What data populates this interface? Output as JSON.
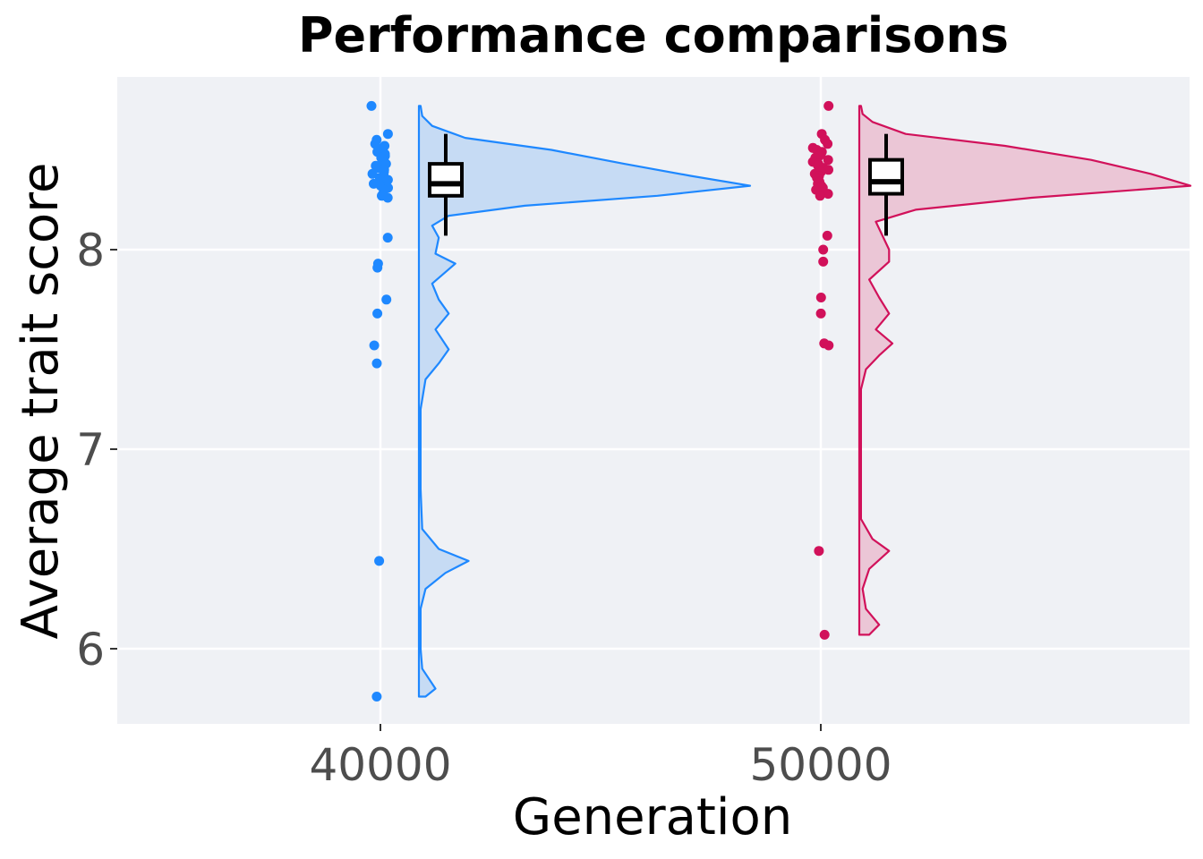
{
  "chart_data": {
    "type": "raincloud",
    "title": "Performance comparisons",
    "xlabel": "Generation",
    "ylabel": "Average trait score",
    "x_categories": [
      "40000",
      "50000"
    ],
    "y_ticks": [
      "6",
      "7",
      "8"
    ],
    "ylim": [
      5.6,
      8.85
    ],
    "grid": true,
    "panel_background": "#eff1f5",
    "groups": [
      {
        "x": 40000,
        "x_label": "40000",
        "color": "#1e88ff",
        "fill": "#c6dbf4",
        "points": [
          8.72,
          8.58,
          8.55,
          8.53,
          8.52,
          8.5,
          8.49,
          8.48,
          8.47,
          8.46,
          8.45,
          8.44,
          8.43,
          8.42,
          8.41,
          8.4,
          8.39,
          8.38,
          8.37,
          8.36,
          8.35,
          8.34,
          8.33,
          8.32,
          8.31,
          8.3,
          8.28,
          8.27,
          8.26,
          8.06,
          7.93,
          7.91,
          7.75,
          7.68,
          7.52,
          7.43,
          6.44,
          5.76
        ],
        "box": {
          "min": 8.07,
          "q1": 8.27,
          "median": 8.33,
          "q3": 8.43,
          "max": 8.58
        },
        "density": [
          [
            5.76,
            0.02
          ],
          [
            5.8,
            0.05
          ],
          [
            5.9,
            0.01
          ],
          [
            6.0,
            0.005
          ],
          [
            6.2,
            0.005
          ],
          [
            6.3,
            0.02
          ],
          [
            6.38,
            0.08
          ],
          [
            6.44,
            0.15
          ],
          [
            6.5,
            0.06
          ],
          [
            6.6,
            0.01
          ],
          [
            6.8,
            0.005
          ],
          [
            7.0,
            0.005
          ],
          [
            7.2,
            0.005
          ],
          [
            7.35,
            0.02
          ],
          [
            7.43,
            0.06
          ],
          [
            7.5,
            0.09
          ],
          [
            7.6,
            0.05
          ],
          [
            7.68,
            0.09
          ],
          [
            7.75,
            0.06
          ],
          [
            7.83,
            0.04
          ],
          [
            7.93,
            0.11
          ],
          [
            7.98,
            0.05
          ],
          [
            8.06,
            0.06
          ],
          [
            8.12,
            0.04
          ],
          [
            8.17,
            0.09
          ],
          [
            8.22,
            0.32
          ],
          [
            8.27,
            0.72
          ],
          [
            8.32,
            1.0
          ],
          [
            8.37,
            0.82
          ],
          [
            8.43,
            0.62
          ],
          [
            8.5,
            0.4
          ],
          [
            8.56,
            0.14
          ],
          [
            8.62,
            0.04
          ],
          [
            8.67,
            0.01
          ],
          [
            8.72,
            0.005
          ]
        ]
      },
      {
        "x": 50000,
        "x_label": "50000",
        "color": "#d1115a",
        "fill": "#ebc6d6",
        "points": [
          8.72,
          8.58,
          8.55,
          8.53,
          8.51,
          8.5,
          8.49,
          8.48,
          8.47,
          8.46,
          8.45,
          8.44,
          8.43,
          8.42,
          8.41,
          8.4,
          8.39,
          8.38,
          8.37,
          8.36,
          8.35,
          8.34,
          8.33,
          8.32,
          8.31,
          8.3,
          8.28,
          8.27,
          8.07,
          8.0,
          7.94,
          7.76,
          7.68,
          7.53,
          7.52,
          6.49,
          6.07
        ],
        "box": {
          "min": 8.07,
          "q1": 8.28,
          "median": 8.34,
          "q3": 8.45,
          "max": 8.58
        },
        "density": [
          [
            6.07,
            0.03
          ],
          [
            6.12,
            0.06
          ],
          [
            6.2,
            0.02
          ],
          [
            6.3,
            0.01
          ],
          [
            6.4,
            0.03
          ],
          [
            6.49,
            0.09
          ],
          [
            6.55,
            0.04
          ],
          [
            6.65,
            0.005
          ],
          [
            6.9,
            0.005
          ],
          [
            7.1,
            0.005
          ],
          [
            7.3,
            0.005
          ],
          [
            7.4,
            0.02
          ],
          [
            7.47,
            0.06
          ],
          [
            7.53,
            0.1
          ],
          [
            7.6,
            0.05
          ],
          [
            7.68,
            0.09
          ],
          [
            7.76,
            0.06
          ],
          [
            7.85,
            0.03
          ],
          [
            7.94,
            0.09
          ],
          [
            8.0,
            0.09
          ],
          [
            8.07,
            0.07
          ],
          [
            8.14,
            0.05
          ],
          [
            8.2,
            0.17
          ],
          [
            8.26,
            0.52
          ],
          [
            8.32,
            1.0
          ],
          [
            8.38,
            0.88
          ],
          [
            8.45,
            0.7
          ],
          [
            8.52,
            0.44
          ],
          [
            8.58,
            0.14
          ],
          [
            8.64,
            0.04
          ],
          [
            8.68,
            0.01
          ],
          [
            8.72,
            0.005
          ]
        ]
      }
    ]
  }
}
